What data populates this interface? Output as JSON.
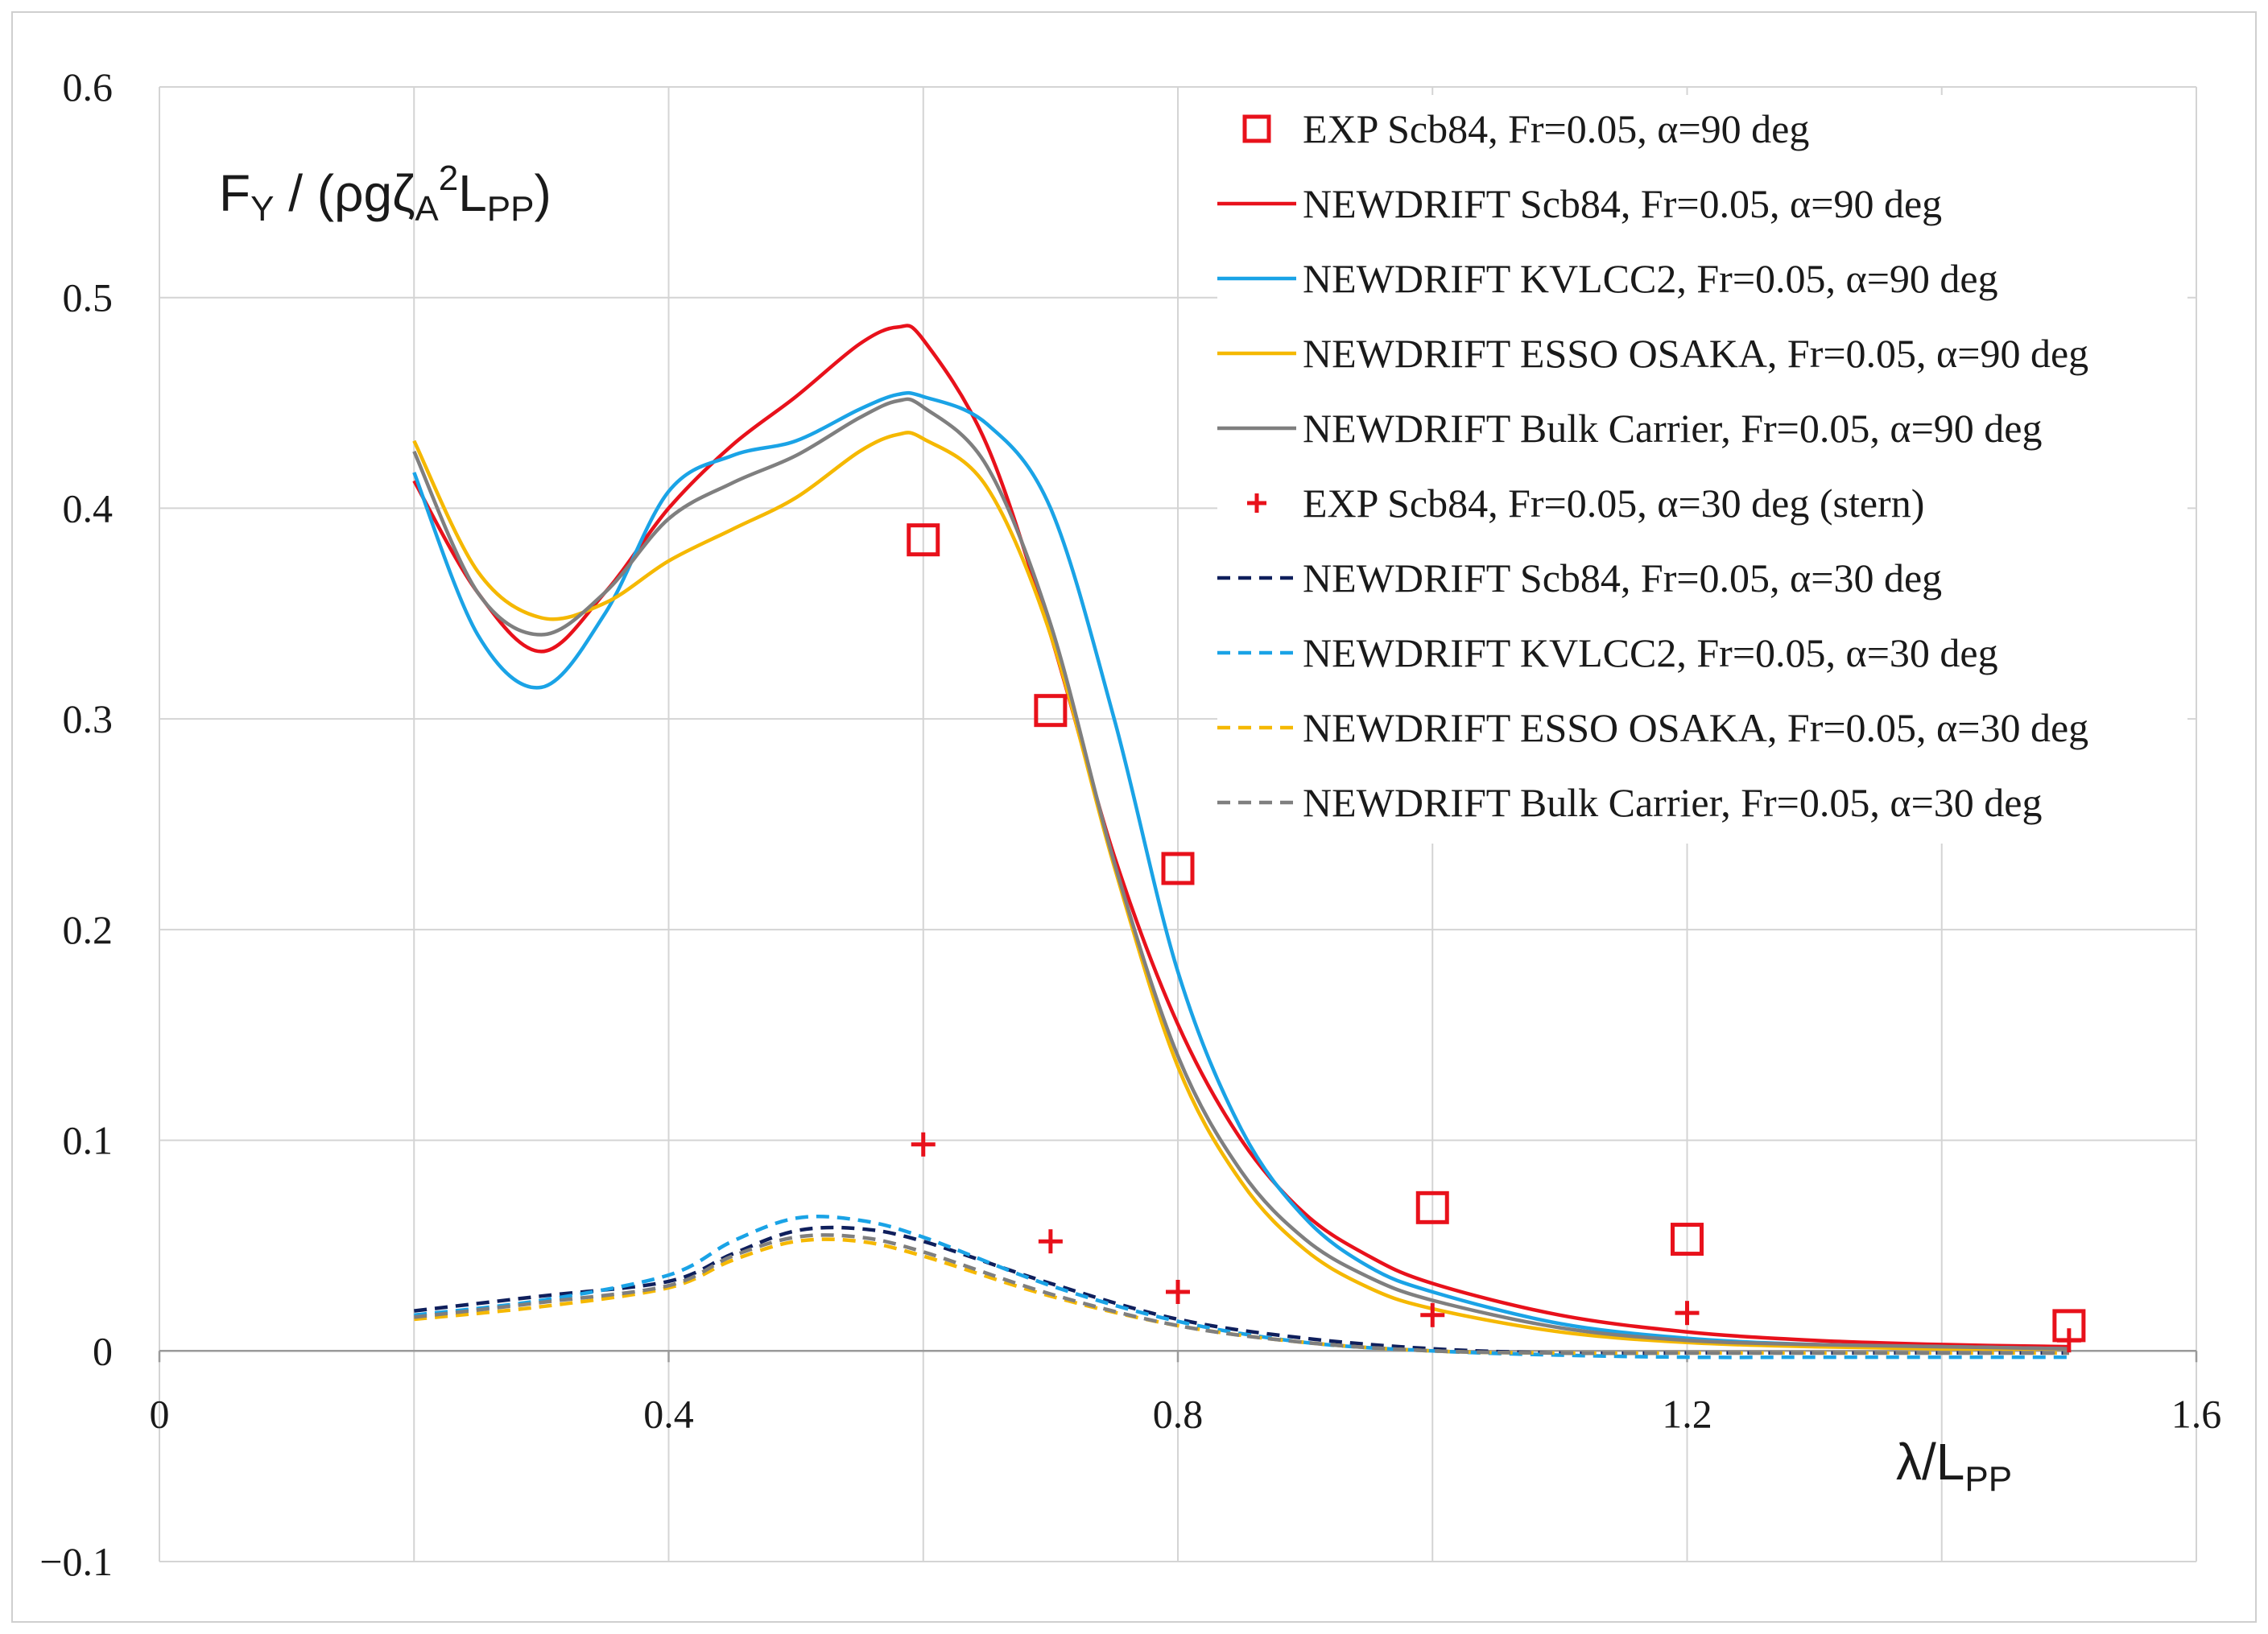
{
  "chart_data": {
    "type": "line",
    "title": "",
    "ylabel": {
      "base": "F",
      "sub1": "Y",
      "mid": " / (ρgζ",
      "sub2": "A",
      "sup": "2",
      "mid2": "L",
      "sub3": "PP",
      "end": ")"
    },
    "xlabel": {
      "base": "λ/L",
      "sub": "PP"
    },
    "xlim": [
      0,
      1.6
    ],
    "ylim": [
      -0.1,
      0.6
    ],
    "xticks": [
      0,
      0.4,
      0.8,
      1.2,
      1.6
    ],
    "xtick_labels": [
      "0",
      "0.4",
      "0.8",
      "1.2",
      "1.6"
    ],
    "xgrid": [
      0,
      0.2,
      0.4,
      0.6,
      0.8,
      1.0,
      1.2,
      1.4,
      1.6
    ],
    "yticks": [
      0.6,
      0.5,
      0.4,
      0.3,
      0.2,
      0.1,
      0,
      -0.1
    ],
    "ytick_labels": [
      "0.6",
      "0.5",
      "0.4",
      "0.3",
      "0.2",
      "0.1",
      "0",
      "−0.1"
    ],
    "legend_position": "top-right",
    "series": [
      {
        "name": "EXP Scb84, Fr=0.05, α=90 deg",
        "kind": "marker-square",
        "color": "#e8111b",
        "x": [
          0.6,
          0.7,
          0.8,
          1.0,
          1.2,
          1.5
        ],
        "y": [
          0.385,
          0.304,
          0.229,
          0.068,
          0.053,
          0.012
        ]
      },
      {
        "name": "NEWDRIFT Scb84, Fr=0.05, α=90 deg",
        "kind": "solid",
        "color": "#e8111b",
        "x": [
          0.2,
          0.25,
          0.3,
          0.35,
          0.4,
          0.45,
          0.5,
          0.55,
          0.58,
          0.6,
          0.65,
          0.7,
          0.75,
          0.8,
          0.85,
          0.9,
          0.95,
          1.0,
          1.1,
          1.2,
          1.3,
          1.4,
          1.5
        ],
        "y": [
          0.413,
          0.36,
          0.332,
          0.36,
          0.4,
          0.43,
          0.453,
          0.478,
          0.486,
          0.48,
          0.43,
          0.34,
          0.235,
          0.155,
          0.1,
          0.065,
          0.045,
          0.032,
          0.017,
          0.009,
          0.005,
          0.003,
          0.002
        ]
      },
      {
        "name": "NEWDRIFT KVLCC2, Fr=0.05, α=90 deg",
        "kind": "solid",
        "color": "#1aa3e6",
        "x": [
          0.2,
          0.25,
          0.3,
          0.35,
          0.4,
          0.45,
          0.5,
          0.55,
          0.58,
          0.6,
          0.65,
          0.7,
          0.75,
          0.8,
          0.85,
          0.9,
          0.95,
          1.0,
          1.1,
          1.2,
          1.3,
          1.4,
          1.5
        ],
        "y": [
          0.417,
          0.34,
          0.315,
          0.35,
          0.408,
          0.425,
          0.432,
          0.447,
          0.454,
          0.453,
          0.44,
          0.4,
          0.3,
          0.18,
          0.105,
          0.063,
          0.04,
          0.028,
          0.013,
          0.006,
          0.003,
          0.002,
          0.001
        ]
      },
      {
        "name": "NEWDRIFT ESSO OSAKA, Fr=0.05, α=90 deg",
        "kind": "solid",
        "color": "#f5b800",
        "x": [
          0.2,
          0.25,
          0.3,
          0.35,
          0.4,
          0.45,
          0.5,
          0.55,
          0.58,
          0.6,
          0.65,
          0.7,
          0.75,
          0.8,
          0.85,
          0.9,
          0.95,
          1.0,
          1.1,
          1.2,
          1.3,
          1.4,
          1.5
        ],
        "y": [
          0.432,
          0.37,
          0.348,
          0.355,
          0.375,
          0.39,
          0.405,
          0.427,
          0.435,
          0.433,
          0.41,
          0.34,
          0.23,
          0.135,
          0.08,
          0.048,
          0.03,
          0.02,
          0.009,
          0.004,
          0.002,
          0.001,
          0.001
        ]
      },
      {
        "name": "NEWDRIFT Bulk Carrier, Fr=0.05, α=90 deg",
        "kind": "solid",
        "color": "#7f7f7f",
        "x": [
          0.2,
          0.25,
          0.3,
          0.35,
          0.4,
          0.45,
          0.5,
          0.55,
          0.58,
          0.6,
          0.65,
          0.7,
          0.75,
          0.8,
          0.85,
          0.9,
          0.95,
          1.0,
          1.1,
          1.2,
          1.3,
          1.4,
          1.5
        ],
        "y": [
          0.427,
          0.36,
          0.34,
          0.36,
          0.395,
          0.412,
          0.425,
          0.443,
          0.451,
          0.448,
          0.42,
          0.345,
          0.232,
          0.14,
          0.085,
          0.053,
          0.035,
          0.024,
          0.011,
          0.005,
          0.003,
          0.002,
          0.001
        ]
      },
      {
        "name": "EXP Scb84, Fr=0.05, α=30 deg (stern)",
        "kind": "marker-plus",
        "color": "#e8111b",
        "x": [
          0.6,
          0.7,
          0.8,
          1.0,
          1.2,
          1.5
        ],
        "y": [
          0.098,
          0.052,
          0.028,
          0.017,
          0.018,
          0.005
        ]
      },
      {
        "name": "NEWDRIFT Scb84, Fr=0.05, α=30 deg",
        "kind": "dashed",
        "color": "#0f1f5c",
        "x": [
          0.2,
          0.3,
          0.4,
          0.45,
          0.5,
          0.55,
          0.6,
          0.7,
          0.8,
          0.9,
          1.0,
          1.1,
          1.2,
          1.3,
          1.4,
          1.5
        ],
        "y": [
          0.019,
          0.026,
          0.033,
          0.046,
          0.057,
          0.058,
          0.052,
          0.032,
          0.015,
          0.006,
          0.001,
          -0.001,
          -0.001,
          -0.001,
          -0.001,
          -0.001
        ]
      },
      {
        "name": "NEWDRIFT KVLCC2, Fr=0.05, α=30 deg",
        "kind": "dashed",
        "color": "#1aa3e6",
        "x": [
          0.2,
          0.3,
          0.4,
          0.45,
          0.5,
          0.55,
          0.6,
          0.7,
          0.8,
          0.9,
          1.0,
          1.1,
          1.2,
          1.3,
          1.4,
          1.5
        ],
        "y": [
          0.017,
          0.024,
          0.036,
          0.052,
          0.063,
          0.062,
          0.054,
          0.031,
          0.014,
          0.004,
          0.0,
          -0.002,
          -0.003,
          -0.003,
          -0.003,
          -0.003
        ]
      },
      {
        "name": "NEWDRIFT ESSO OSAKA, Fr=0.05, α=30 deg",
        "kind": "dashed",
        "color": "#f5b800",
        "x": [
          0.2,
          0.3,
          0.4,
          0.45,
          0.5,
          0.55,
          0.6,
          0.7,
          0.8,
          0.9,
          1.0,
          1.1,
          1.2,
          1.3,
          1.4,
          1.5
        ],
        "y": [
          0.015,
          0.021,
          0.03,
          0.043,
          0.052,
          0.052,
          0.045,
          0.026,
          0.012,
          0.004,
          0.0,
          -0.001,
          -0.001,
          -0.001,
          -0.001,
          -0.001
        ]
      },
      {
        "name": "NEWDRIFT Bulk Carrier, Fr=0.05, α=30 deg",
        "kind": "dashed",
        "color": "#7f7f7f",
        "x": [
          0.2,
          0.3,
          0.4,
          0.45,
          0.5,
          0.55,
          0.6,
          0.7,
          0.8,
          0.9,
          1.0,
          1.1,
          1.2,
          1.3,
          1.4,
          1.5
        ],
        "y": [
          0.016,
          0.023,
          0.031,
          0.045,
          0.054,
          0.054,
          0.047,
          0.027,
          0.012,
          0.004,
          0.0,
          -0.001,
          -0.001,
          -0.001,
          -0.001,
          -0.001
        ]
      }
    ]
  }
}
